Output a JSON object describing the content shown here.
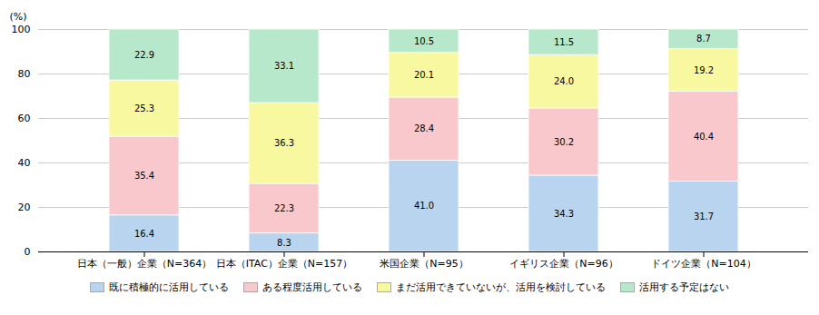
{
  "chart_data": {
    "type": "bar",
    "stacked": true,
    "categories": [
      "日本（一般）企業（N=364）",
      "日本（ITAC）企業（N=157）",
      "米国企業（N=95）",
      "イギリス企業（N=96）",
      "ドイツ企業（N=104）"
    ],
    "series": [
      {
        "name": "既に積極的に活用している",
        "color": "#b8d4ee",
        "values": [
          16.4,
          8.3,
          41.0,
          34.3,
          31.7
        ]
      },
      {
        "name": "ある程度活用している",
        "color": "#f9c8cc",
        "values": [
          35.4,
          22.3,
          28.4,
          30.2,
          40.4
        ]
      },
      {
        "name": "まだ活用できていないが、活用を検討している",
        "color": "#f8f8a0",
        "values": [
          25.3,
          36.3,
          20.1,
          24.0,
          19.2
        ]
      },
      {
        "name": "活用する予定はない",
        "color": "#b8e8cc",
        "values": [
          22.9,
          33.1,
          10.5,
          11.5,
          8.7
        ]
      }
    ],
    "ylabel": "(%)",
    "ylim": [
      0,
      100
    ],
    "yticks": [
      0,
      20,
      40,
      60,
      80,
      100
    ],
    "grid": true,
    "data_labels": true,
    "legend": "bottom"
  }
}
